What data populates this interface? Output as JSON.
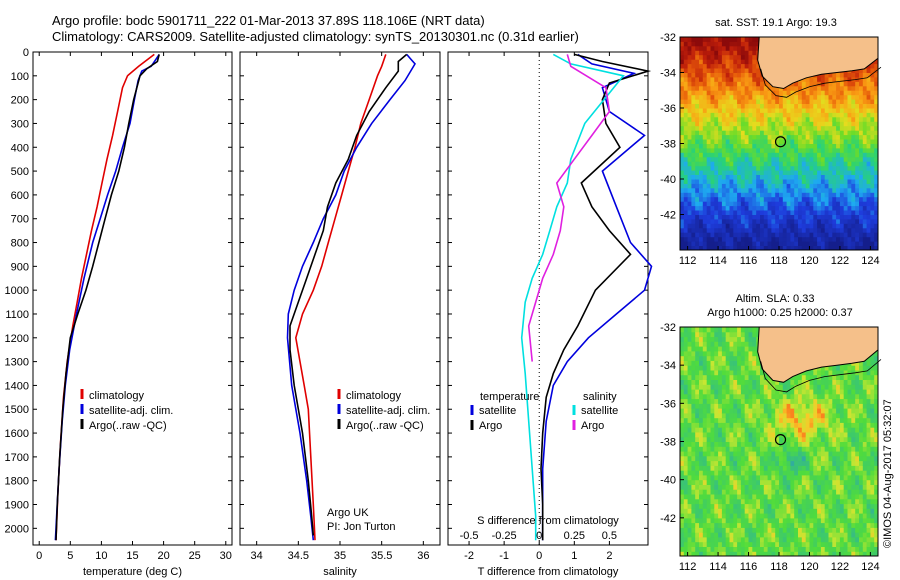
{
  "header": {
    "line1": "Argo profile: bodc 5901711_222 01-Mar-2013 37.89S 118.106E (NRT data)",
    "line2": "Climatology: CARS2009. Satellite-adjusted climatology: synTS_20130301.nc (0.31d earlier)"
  },
  "colors": {
    "climatology": "#e00000",
    "satellite": "#0000dd",
    "argo": "#000000",
    "argo_salinity": "#e020e0",
    "satellite_salinity": "#00e0e0",
    "land": "#f5c08a"
  },
  "chart_data": [
    {
      "type": "line",
      "name": "temperature",
      "xlabel": "temperature (deg C)",
      "xlim": [
        -1,
        31
      ],
      "ylim": [
        0,
        2070
      ],
      "xticks": [
        0,
        5,
        10,
        15,
        20,
        25,
        30
      ],
      "yticks": [
        0,
        100,
        200,
        300,
        400,
        500,
        600,
        700,
        800,
        900,
        1000,
        1100,
        1200,
        1300,
        1400,
        1500,
        1600,
        1700,
        1800,
        1900,
        2000
      ],
      "legend": [
        "climatology",
        "satellite-adj. clim.",
        "Argo(..raw -QC)"
      ],
      "series": [
        {
          "name": "climatology",
          "color": "#e00000",
          "points": [
            [
              18.5,
              10
            ],
            [
              16,
              60
            ],
            [
              14.2,
              100
            ],
            [
              13.4,
              150
            ],
            [
              12.6,
              250
            ],
            [
              11.8,
              350
            ],
            [
              10.9,
              450
            ],
            [
              10.1,
              550
            ],
            [
              9.3,
              650
            ],
            [
              8.4,
              750
            ],
            [
              7.6,
              850
            ],
            [
              6.8,
              950
            ],
            [
              6.1,
              1050
            ],
            [
              5.4,
              1150
            ],
            [
              4.5,
              1300
            ],
            [
              3.9,
              1450
            ],
            [
              3.4,
              1650
            ],
            [
              3.0,
              1850
            ],
            [
              2.7,
              2050
            ]
          ]
        },
        {
          "name": "satellite-adj. clim.",
          "color": "#0000dd",
          "points": [
            [
              19.3,
              10
            ],
            [
              18.8,
              30
            ],
            [
              18.0,
              60
            ],
            [
              16.5,
              80
            ],
            [
              15.9,
              120
            ],
            [
              15.3,
              200
            ],
            [
              14.6,
              300
            ],
            [
              13.4,
              400
            ],
            [
              12.3,
              500
            ],
            [
              11.0,
              600
            ],
            [
              9.8,
              700
            ],
            [
              8.6,
              800
            ],
            [
              7.2,
              950
            ],
            [
              6.0,
              1100
            ],
            [
              4.9,
              1250
            ],
            [
              4.2,
              1400
            ],
            [
              3.7,
              1550
            ],
            [
              3.2,
              1750
            ],
            [
              2.8,
              1950
            ],
            [
              2.6,
              2050
            ]
          ]
        },
        {
          "name": "Argo(..raw -QC)",
          "color": "#000000",
          "points": [
            [
              19.3,
              10
            ],
            [
              19.0,
              40
            ],
            [
              17.3,
              70
            ],
            [
              16.2,
              100
            ],
            [
              15.2,
              200
            ],
            [
              14.4,
              300
            ],
            [
              13.7,
              400
            ],
            [
              12.8,
              500
            ],
            [
              11.6,
              600
            ],
            [
              10.6,
              700
            ],
            [
              9.6,
              800
            ],
            [
              8.6,
              900
            ],
            [
              7.5,
              1000
            ],
            [
              6.2,
              1100
            ],
            [
              5.0,
              1200
            ],
            [
              4.3,
              1350
            ],
            [
              3.8,
              1500
            ],
            [
              3.3,
              1700
            ],
            [
              2.9,
              1900
            ],
            [
              2.7,
              2050
            ]
          ]
        }
      ]
    },
    {
      "type": "line",
      "name": "salinity",
      "xlabel": "salinity",
      "xlim": [
        33.8,
        36.2
      ],
      "ylim": [
        0,
        2070
      ],
      "xticks": [
        34,
        34.5,
        35,
        35.5,
        36
      ],
      "legend": [
        "climatology",
        "satellite-adj. clim.",
        "Argo(..raw -QC)"
      ],
      "annotation": [
        "Argo UK",
        "PI: Jon Turton"
      ],
      "series": [
        {
          "name": "climatology",
          "color": "#e00000",
          "points": [
            [
              35.55,
              10
            ],
            [
              35.5,
              60
            ],
            [
              35.45,
              100
            ],
            [
              35.35,
              200
            ],
            [
              35.25,
              300
            ],
            [
              35.18,
              400
            ],
            [
              35.1,
              500
            ],
            [
              35.02,
              600
            ],
            [
              34.94,
              700
            ],
            [
              34.86,
              800
            ],
            [
              34.78,
              900
            ],
            [
              34.68,
              1000
            ],
            [
              34.55,
              1100
            ],
            [
              34.47,
              1200
            ],
            [
              34.52,
              1300
            ],
            [
              34.57,
              1400
            ],
            [
              34.62,
              1500
            ],
            [
              34.65,
              1700
            ],
            [
              34.68,
              1900
            ],
            [
              34.7,
              2050
            ]
          ]
        },
        {
          "name": "satellite-adj. clim.",
          "color": "#0000dd",
          "points": [
            [
              35.8,
              10
            ],
            [
              35.85,
              30
            ],
            [
              35.9,
              50
            ],
            [
              35.78,
              120
            ],
            [
              35.6,
              200
            ],
            [
              35.38,
              300
            ],
            [
              35.2,
              400
            ],
            [
              35.05,
              500
            ],
            [
              34.95,
              600
            ],
            [
              34.8,
              700
            ],
            [
              34.68,
              800
            ],
            [
              34.55,
              900
            ],
            [
              34.45,
              1000
            ],
            [
              34.38,
              1100
            ],
            [
              34.37,
              1200
            ],
            [
              34.42,
              1400
            ],
            [
              34.52,
              1600
            ],
            [
              34.6,
              1800
            ],
            [
              34.65,
              1950
            ],
            [
              34.68,
              2050
            ]
          ]
        },
        {
          "name": "Argo(..raw -QC)",
          "color": "#000000",
          "points": [
            [
              35.8,
              10
            ],
            [
              35.7,
              40
            ],
            [
              35.7,
              80
            ],
            [
              35.55,
              150
            ],
            [
              35.35,
              250
            ],
            [
              35.2,
              350
            ],
            [
              35.1,
              450
            ],
            [
              34.95,
              550
            ],
            [
              34.85,
              650
            ],
            [
              34.8,
              750
            ],
            [
              34.7,
              850
            ],
            [
              34.6,
              950
            ],
            [
              34.5,
              1050
            ],
            [
              34.4,
              1150
            ],
            [
              34.4,
              1250
            ],
            [
              34.45,
              1400
            ],
            [
              34.55,
              1600
            ],
            [
              34.62,
              1800
            ],
            [
              34.66,
              1950
            ],
            [
              34.68,
              2030
            ]
          ]
        }
      ]
    },
    {
      "type": "line",
      "name": "difference",
      "xlabel": "T difference from climatology",
      "xlim": [
        -2.6,
        3.1
      ],
      "ylim": [
        0,
        2070
      ],
      "xticks": [
        -2,
        -1,
        0,
        1,
        2
      ],
      "x2label": "S difference from climatology",
      "x2ticks": [
        "-0.5",
        "-0.25",
        "0",
        "0.25",
        "0.5"
      ],
      "legend": {
        "temperature": [
          "satellite",
          "Argo"
        ],
        "salinity": [
          "satellite",
          "Argo"
        ]
      },
      "series": [
        {
          "name": "satellite",
          "group": "temperature",
          "color": "#0000dd",
          "points": [
            [
              1.1,
              10
            ],
            [
              1.5,
              50
            ],
            [
              2.7,
              90
            ],
            [
              1.8,
              150
            ],
            [
              2.0,
              250
            ],
            [
              3.0,
              350
            ],
            [
              1.8,
              500
            ],
            [
              2.2,
              650
            ],
            [
              2.6,
              800
            ],
            [
              3.2,
              900
            ],
            [
              3.0,
              1000
            ],
            [
              2.2,
              1100
            ],
            [
              1.4,
              1200
            ],
            [
              0.8,
              1300
            ],
            [
              0.4,
              1400
            ],
            [
              0.2,
              1550
            ],
            [
              0.1,
              1750
            ],
            [
              0.1,
              2050
            ]
          ]
        },
        {
          "name": "Argo",
          "group": "temperature",
          "color": "#000000",
          "points": [
            [
              1.0,
              10
            ],
            [
              1.8,
              40
            ],
            [
              3.1,
              80
            ],
            [
              2.0,
              130
            ],
            [
              1.8,
              200
            ],
            [
              1.9,
              300
            ],
            [
              2.3,
              400
            ],
            [
              1.2,
              550
            ],
            [
              1.5,
              650
            ],
            [
              2.0,
              750
            ],
            [
              2.6,
              850
            ],
            [
              1.6,
              1000
            ],
            [
              1.1,
              1150
            ],
            [
              0.7,
              1250
            ],
            [
              0.4,
              1350
            ],
            [
              0.2,
              1450
            ],
            [
              0.1,
              1600
            ],
            [
              0.05,
              1750
            ],
            [
              0.1,
              1900
            ],
            [
              0.1,
              2050
            ]
          ]
        },
        {
          "name": "satellite",
          "group": "salinity",
          "color": "#00e0e0",
          "points": [
            [
              0.4,
              10
            ],
            [
              0.9,
              50
            ],
            [
              2.4,
              100
            ],
            [
              1.3,
              300
            ],
            [
              0.9,
              450
            ],
            [
              0.8,
              550
            ],
            [
              0.5,
              650
            ],
            [
              0.3,
              750
            ],
            [
              0.1,
              850
            ],
            [
              -0.2,
              950
            ],
            [
              -0.4,
              1050
            ],
            [
              -0.5,
              1200
            ],
            [
              -0.4,
              1350
            ],
            [
              -0.3,
              1550
            ],
            [
              -0.2,
              1750
            ],
            [
              -0.1,
              1950
            ],
            [
              -0.1,
              2050
            ]
          ]
        },
        {
          "name": "Argo",
          "group": "salinity",
          "color": "#e020e0",
          "points": [
            [
              0.8,
              10
            ],
            [
              0.9,
              60
            ],
            [
              1.9,
              150
            ],
            [
              2.0,
              250
            ],
            [
              1.5,
              350
            ],
            [
              1.0,
              450
            ],
            [
              0.5,
              550
            ],
            [
              0.7,
              650
            ],
            [
              0.6,
              750
            ],
            [
              0.4,
              850
            ],
            [
              0.1,
              950
            ],
            [
              -0.1,
              1050
            ],
            [
              -0.3,
              1150
            ],
            [
              -0.2,
              1300
            ]
          ]
        }
      ]
    },
    {
      "type": "heatmap",
      "name": "sst-map",
      "title": "sat. SST: 19.1 Argo: 19.3",
      "xlim": [
        111.5,
        124.5
      ],
      "ylim": [
        -44,
        -32
      ],
      "xticks": [
        112,
        114,
        116,
        118,
        120,
        122,
        124
      ],
      "yticks": [
        -32,
        -34,
        -36,
        -38,
        -40,
        -42
      ],
      "argo_position": [
        118.1,
        -37.9
      ]
    },
    {
      "type": "heatmap",
      "name": "sla-map",
      "title": [
        "Altim. SLA: 0.33",
        "Argo h1000: 0.25 h2000: 0.37"
      ],
      "xlim": [
        111.5,
        124.5
      ],
      "ylim": [
        -44,
        -32
      ],
      "xticks": [
        112,
        114,
        116,
        118,
        120,
        122,
        124
      ],
      "yticks": [
        -32,
        -34,
        -36,
        -38,
        -40,
        -42
      ],
      "argo_position": [
        118.1,
        -37.9
      ]
    }
  ],
  "footer": {
    "stamp": "©IMOS 04-Aug-2017 05:32:07"
  }
}
